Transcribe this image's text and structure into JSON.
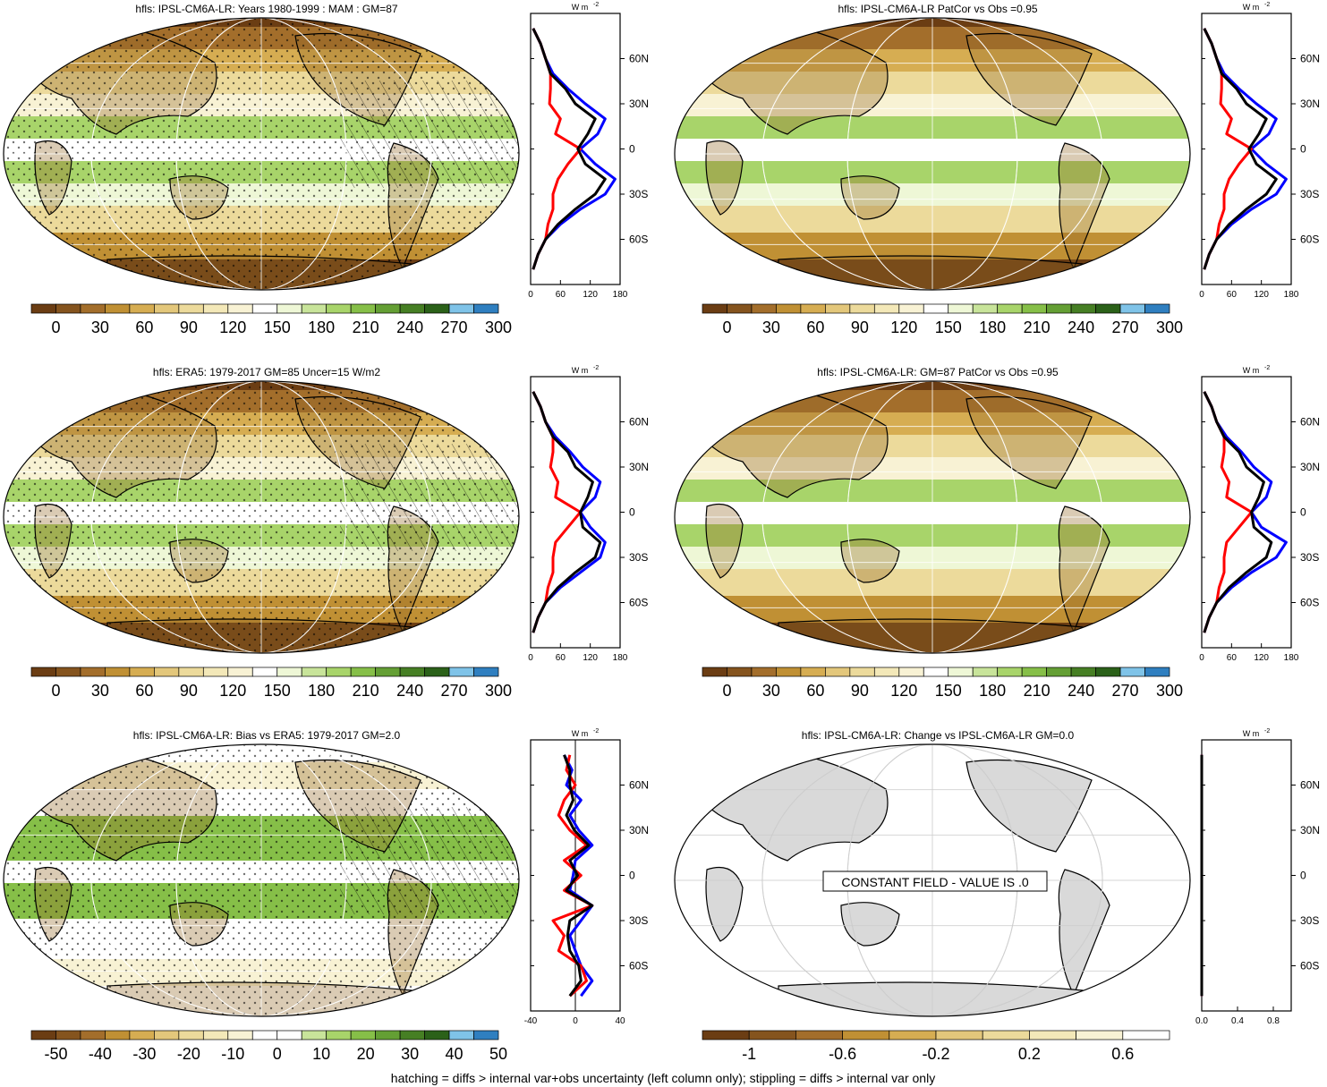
{
  "footer": "hatching = diffs > internal var+obs uncertainty (left column only); stippling = diffs > internal var only",
  "colors": {
    "model_line": "#ff0000",
    "obs_line": "#0000ff",
    "ref_line": "#000000",
    "land_gray": "#d9d9d9"
  },
  "palettes": {
    "flux": [
      "#6b3d13",
      "#85541e",
      "#a36e2b",
      "#c09034",
      "#d6ad52",
      "#e3c77b",
      "#ecda9b",
      "#f3e8b8",
      "#f8f2d4",
      "#ffffff",
      "#eef7d6",
      "#c8e49a",
      "#a8d46a",
      "#86bf48",
      "#649f34",
      "#467f24",
      "#2b6119",
      "#7fc3e8",
      "#2f7fc0"
    ],
    "bias": [
      "#6b3d13",
      "#85541e",
      "#a36e2b",
      "#c09034",
      "#d6ad52",
      "#e3c77b",
      "#ecda9b",
      "#f3e8b8",
      "#f8f2d4",
      "#ffffff",
      "#ffffff",
      "#c8e49a",
      "#a8d46a",
      "#86bf48",
      "#649f34",
      "#467f24",
      "#2b6119",
      "#7fc3e8",
      "#2f7fc0"
    ],
    "change": [
      "#6b3d13",
      "#85541e",
      "#a36e2b",
      "#c09034",
      "#d6ad52",
      "#e3c77b",
      "#ecda9b",
      "#f3e8b8",
      "#f8f2d4",
      "#ffffff"
    ]
  },
  "panels": [
    {
      "title": "hfls: IPSL-CM6A-LR: Years 1980-1999 : MAM : GM=87",
      "cbar": "flux",
      "cbar_labels": [
        "0",
        "30",
        "60",
        "90",
        "120",
        "150",
        "180",
        "210",
        "240",
        "270",
        "300"
      ],
      "stipple": true
    },
    {
      "title": "hfls: IPSL-CM6A-LR PatCor vs Obs =0.95",
      "cbar": "flux",
      "cbar_labels": [
        "0",
        "30",
        "60",
        "90",
        "120",
        "150",
        "180",
        "210",
        "240",
        "270",
        "300"
      ],
      "stipple": false
    },
    {
      "title": "hfls: ERA5: 1979-2017 GM=85 Uncer=15 W/m2",
      "cbar": "flux",
      "cbar_labels": [
        "0",
        "30",
        "60",
        "90",
        "120",
        "150",
        "180",
        "210",
        "240",
        "270",
        "300"
      ],
      "stipple": true
    },
    {
      "title": "hfls: IPSL-CM6A-LR: GM=87 PatCor vs Obs =0.95",
      "cbar": "flux",
      "cbar_labels": [
        "0",
        "30",
        "60",
        "90",
        "120",
        "150",
        "180",
        "210",
        "240",
        "270",
        "300"
      ],
      "stipple": false
    },
    {
      "title": "hfls: IPSL-CM6A-LR: Bias vs ERA5: 1979-2017 GM=2.0",
      "cbar": "bias",
      "cbar_labels": [
        "-50",
        "-40",
        "-30",
        "-20",
        "-10",
        "0",
        "10",
        "20",
        "30",
        "40",
        "50"
      ],
      "stipple": true
    },
    {
      "title": "hfls: IPSL-CM6A-LR: Change vs IPSL-CM6A-LR GM=0.0",
      "cbar": "change",
      "cbar_labels": [
        "-1",
        "-0.6",
        "-0.2",
        "0.2",
        "0.6"
      ],
      "stipple": false,
      "constant_label": "CONSTANT FIELD - VALUE IS .0"
    }
  ],
  "chart_data": [
    {
      "type": "line",
      "unit_label": "W m",
      "unit_exp": "-2",
      "xlim": [
        0,
        180
      ],
      "xticks": [
        "0",
        "60",
        "120",
        "180"
      ],
      "ylim": [
        -90,
        90
      ],
      "yticks": [
        "60N",
        "30N",
        "0",
        "30S",
        "60S"
      ],
      "lat": [
        80,
        70,
        60,
        50,
        40,
        30,
        20,
        10,
        0,
        -10,
        -20,
        -30,
        -40,
        -50,
        -60,
        -70,
        -80
      ],
      "series": [
        {
          "role": "model",
          "values": [
            5,
            20,
            30,
            40,
            40,
            38,
            60,
            50,
            100,
            75,
            55,
            45,
            45,
            35,
            30,
            15,
            5
          ]
        },
        {
          "role": "obs",
          "values": [
            5,
            20,
            30,
            45,
            75,
            110,
            150,
            135,
            100,
            130,
            170,
            150,
            100,
            60,
            30,
            15,
            5
          ]
        },
        {
          "role": "ref",
          "values": [
            5,
            20,
            30,
            40,
            70,
            90,
            130,
            115,
            95,
            110,
            150,
            130,
            90,
            55,
            30,
            15,
            5
          ]
        }
      ]
    },
    {
      "type": "line",
      "unit_label": "W m",
      "unit_exp": "-2",
      "xlim": [
        0,
        180
      ],
      "xticks": [
        "0",
        "60",
        "120",
        "180"
      ],
      "ylim": [
        -90,
        90
      ],
      "yticks": [
        "60N",
        "30N",
        "0",
        "30S",
        "60S"
      ],
      "lat": [
        80,
        70,
        60,
        50,
        40,
        30,
        20,
        10,
        0,
        -10,
        -20,
        -30,
        -40,
        -50,
        -60,
        -70,
        -80
      ],
      "series": [
        {
          "role": "model",
          "values": [
            5,
            20,
            30,
            40,
            40,
            38,
            60,
            50,
            100,
            75,
            55,
            45,
            45,
            35,
            30,
            15,
            5
          ]
        },
        {
          "role": "obs",
          "values": [
            5,
            20,
            30,
            45,
            75,
            110,
            150,
            135,
            100,
            130,
            170,
            150,
            100,
            60,
            30,
            15,
            5
          ]
        },
        {
          "role": "ref",
          "values": [
            5,
            20,
            30,
            40,
            70,
            90,
            130,
            115,
            95,
            110,
            150,
            130,
            90,
            55,
            30,
            15,
            5
          ]
        }
      ]
    },
    {
      "type": "line",
      "unit_label": "W m",
      "unit_exp": "-2",
      "xlim": [
        0,
        180
      ],
      "xticks": [
        "0",
        "60",
        "120",
        "180"
      ],
      "ylim": [
        -90,
        90
      ],
      "yticks": [
        "60N",
        "30N",
        "0",
        "30S",
        "60S"
      ],
      "lat": [
        80,
        70,
        60,
        50,
        40,
        30,
        20,
        10,
        0,
        -10,
        -20,
        -30,
        -40,
        -50,
        -60,
        -70,
        -80
      ],
      "series": [
        {
          "role": "model",
          "values": [
            5,
            20,
            30,
            45,
            45,
            40,
            55,
            50,
            100,
            75,
            50,
            45,
            45,
            35,
            30,
            15,
            5
          ]
        },
        {
          "role": "obs",
          "values": [
            5,
            20,
            30,
            50,
            80,
            105,
            140,
            130,
            100,
            120,
            150,
            140,
            100,
            60,
            30,
            15,
            5
          ]
        },
        {
          "role": "ref",
          "values": [
            5,
            20,
            30,
            45,
            75,
            90,
            125,
            115,
            100,
            105,
            140,
            130,
            90,
            55,
            30,
            15,
            5
          ]
        }
      ]
    },
    {
      "type": "line",
      "unit_label": "W m",
      "unit_exp": "-2",
      "xlim": [
        0,
        180
      ],
      "xticks": [
        "0",
        "60",
        "120",
        "180"
      ],
      "ylim": [
        -90,
        90
      ],
      "yticks": [
        "60N",
        "30N",
        "0",
        "30S",
        "60S"
      ],
      "lat": [
        80,
        70,
        60,
        50,
        40,
        30,
        20,
        10,
        0,
        -10,
        -20,
        -30,
        -40,
        -50,
        -60,
        -70,
        -80
      ],
      "series": [
        {
          "role": "model",
          "values": [
            5,
            20,
            30,
            45,
            45,
            40,
            55,
            50,
            100,
            75,
            50,
            45,
            45,
            35,
            30,
            15,
            5
          ]
        },
        {
          "role": "obs",
          "values": [
            5,
            20,
            30,
            50,
            80,
            105,
            140,
            130,
            100,
            120,
            170,
            150,
            100,
            60,
            30,
            15,
            5
          ]
        },
        {
          "role": "ref",
          "values": [
            5,
            20,
            30,
            45,
            75,
            90,
            125,
            115,
            100,
            105,
            140,
            130,
            90,
            55,
            30,
            15,
            5
          ]
        }
      ]
    },
    {
      "type": "line",
      "unit_label": "W m",
      "unit_exp": "-2",
      "xlim": [
        -40,
        40
      ],
      "xticks": [
        "-40",
        "0",
        "40"
      ],
      "ylim": [
        -90,
        90
      ],
      "yticks": [
        "60N",
        "30N",
        "0",
        "30S",
        "60S"
      ],
      "zero_line": true,
      "lat": [
        80,
        70,
        60,
        50,
        40,
        30,
        20,
        10,
        0,
        -10,
        -20,
        -30,
        -40,
        -50,
        -60,
        -70,
        -80
      ],
      "series": [
        {
          "role": "model",
          "values": [
            -5,
            -8,
            0,
            -10,
            -15,
            -5,
            10,
            -10,
            5,
            -10,
            15,
            -20,
            -10,
            -15,
            5,
            10,
            -5
          ]
        },
        {
          "role": "obs",
          "values": [
            -10,
            -3,
            -8,
            5,
            -5,
            3,
            15,
            0,
            -2,
            -5,
            15,
            5,
            -5,
            0,
            5,
            15,
            5
          ]
        },
        {
          "role": "ref",
          "values": [
            -10,
            -5,
            -5,
            -2,
            -8,
            -1,
            12,
            -5,
            2,
            -8,
            15,
            -5,
            -7,
            -5,
            3,
            5,
            -5
          ]
        }
      ]
    },
    {
      "type": "line",
      "unit_label": "W m",
      "unit_exp": "-2",
      "xlim": [
        0,
        1
      ],
      "xticks": [
        "0.0",
        "0.4",
        "0.8"
      ],
      "ylim": [
        -90,
        90
      ],
      "yticks": [
        "60N",
        "30N",
        "0",
        "30S",
        "60S"
      ],
      "lat": [
        80,
        -80
      ],
      "series": [
        {
          "role": "model",
          "values": [
            0,
            0
          ]
        },
        {
          "role": "obs",
          "values": [
            0,
            0
          ]
        },
        {
          "role": "ref",
          "values": [
            0,
            0
          ]
        }
      ]
    }
  ]
}
